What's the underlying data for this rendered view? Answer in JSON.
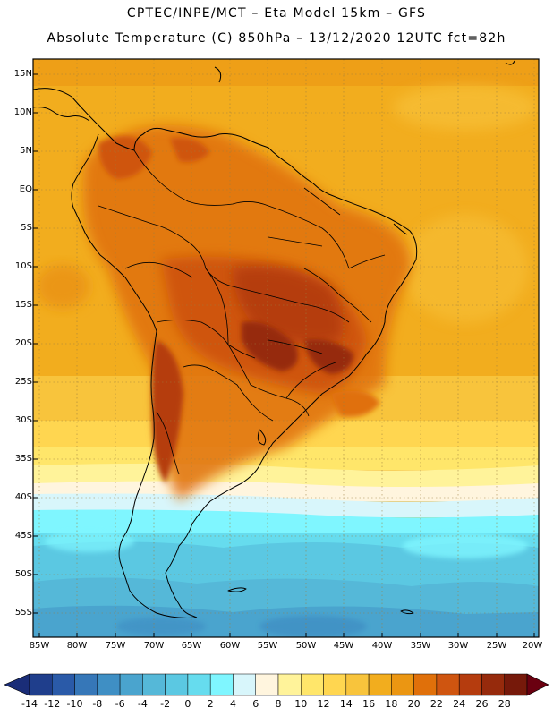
{
  "header": {
    "line1": "CPTEC/INPE/MCT –  Eta Model 15km – GFS",
    "line2": "Absolute Temperature (C) 850hPa – 13/12/2020 12UTC fct=82h"
  },
  "map": {
    "variable": "Absolute Temperature",
    "units": "C",
    "level": "850hPa",
    "model": "Eta Model 15km",
    "boundary": "GFS",
    "latitude_labels": [
      "15N",
      "10N",
      "5N",
      "EQ",
      "5S",
      "10S",
      "15S",
      "20S",
      "25S",
      "30S",
      "35S",
      "40S",
      "45S",
      "50S",
      "55S"
    ],
    "longitude_labels": [
      "85W",
      "80W",
      "75W",
      "70W",
      "65W",
      "60W",
      "55W",
      "50W",
      "45W",
      "40W",
      "35W",
      "30W",
      "25W",
      "20W"
    ]
  },
  "colorbar": {
    "labels": [
      "-14",
      "-12",
      "-10",
      "-8",
      "-6",
      "-4",
      "-2",
      "0",
      "2",
      "4",
      "6",
      "8",
      "10",
      "12",
      "14",
      "16",
      "18",
      "20",
      "22",
      "24",
      "26",
      "28"
    ],
    "colors": [
      "#1f3e8c",
      "#2a5aa8",
      "#3677b8",
      "#3f8fc4",
      "#4aa4ce",
      "#55b8d8",
      "#5bc8e2",
      "#66dcee",
      "#7ff6ff",
      "#d8f6fb",
      "#fff5de",
      "#fff39a",
      "#ffe66a",
      "#ffd650",
      "#f8c43c",
      "#f2ad1e",
      "#eb9612",
      "#e0700a",
      "#cf5510",
      "#b53c0e",
      "#962a0c",
      "#76190a"
    ],
    "low_arrow_color": "#1a2d78",
    "high_arrow_color": "#6a0010"
  }
}
